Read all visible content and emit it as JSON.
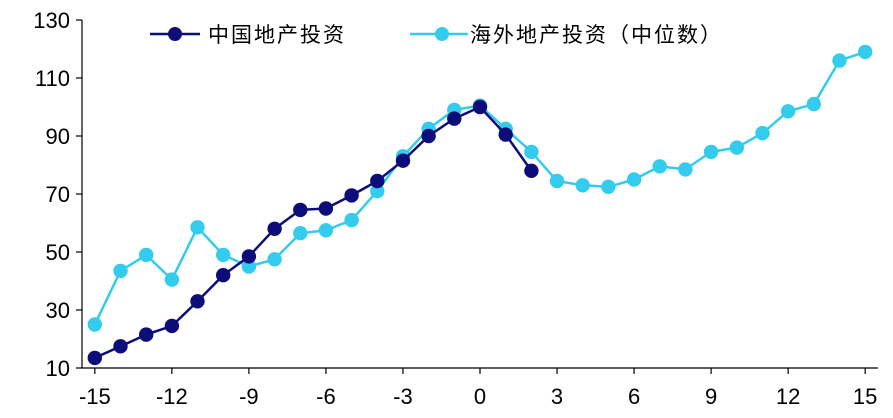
{
  "chart_data": {
    "type": "line",
    "title": "",
    "xlabel": "",
    "ylabel": "",
    "xlim": [
      -15.5,
      15.5
    ],
    "ylim": [
      10,
      130
    ],
    "x_ticks": [
      -15,
      -12,
      -9,
      -6,
      -3,
      0,
      3,
      6,
      9,
      12,
      15
    ],
    "x_tick_labels": [
      "-15",
      "-12",
      "-9",
      "-6",
      "-3",
      "0",
      "3",
      "6",
      "9",
      "12",
      "15"
    ],
    "y_ticks": [
      10,
      30,
      50,
      70,
      90,
      110,
      130
    ],
    "y_tick_labels": [
      "10",
      "30",
      "50",
      "70",
      "90",
      "110",
      "130"
    ],
    "grid": false,
    "legend_position": "top",
    "series": [
      {
        "name": "中国地产投资",
        "color": "#0d0d7a",
        "x": [
          -15,
          -14,
          -13,
          -12,
          -11,
          -10,
          -9,
          -8,
          -7,
          -6,
          -5,
          -4,
          -3,
          -2,
          -1,
          0,
          1,
          2
        ],
        "y": [
          13.5,
          17.5,
          21.5,
          24.5,
          33,
          42,
          48.5,
          58,
          64.5,
          65,
          69.5,
          74.5,
          81.5,
          90,
          96,
          100,
          90.5,
          78
        ]
      },
      {
        "name": "海外地产投资（中位数）",
        "color": "#33ccee",
        "x": [
          -15,
          -14,
          -13,
          -12,
          -11,
          -10,
          -9,
          -8,
          -7,
          -6,
          -5,
          -4,
          -3,
          -2,
          -1,
          0,
          1,
          2,
          3,
          4,
          5,
          6,
          7,
          8,
          9,
          10,
          11,
          12,
          13,
          14,
          15
        ],
        "y": [
          25,
          43.5,
          49,
          40.5,
          58.5,
          49,
          45,
          47.5,
          56.5,
          57.5,
          61,
          71,
          83,
          92.5,
          99,
          100.5,
          92.5,
          84.5,
          74.5,
          73,
          72.5,
          75,
          79.5,
          78.5,
          84.5,
          86,
          91,
          98.5,
          101,
          116,
          119
        ]
      }
    ]
  }
}
